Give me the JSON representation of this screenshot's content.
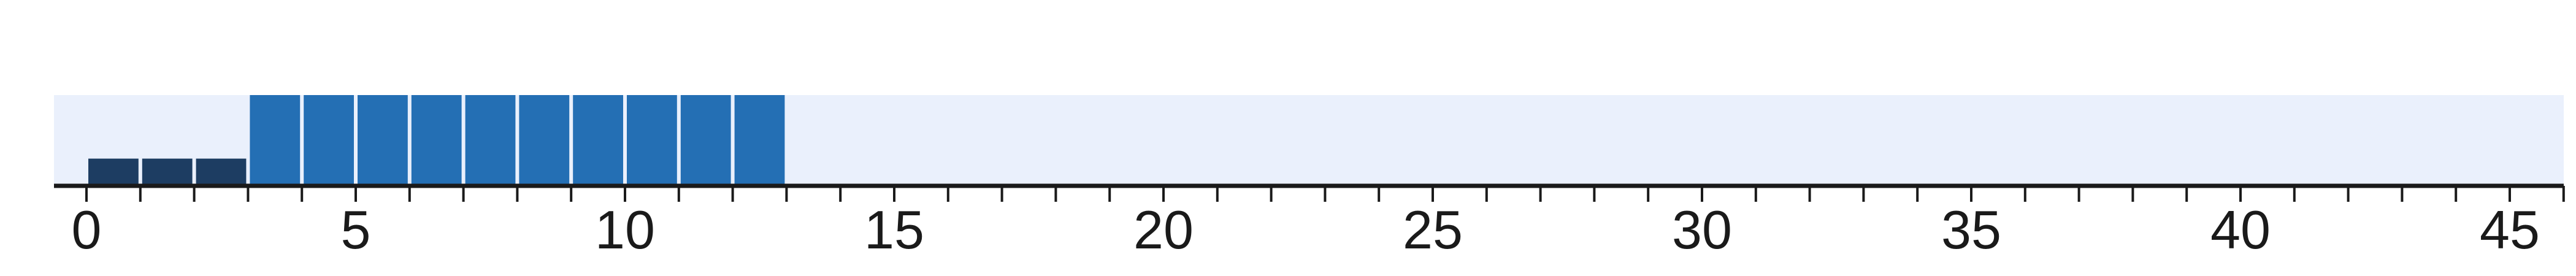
{
  "chart_data": {
    "type": "bar",
    "title": "",
    "xlabel": "",
    "ylabel": "",
    "xlim": [
      -0.6,
      46.2
    ],
    "ylim": [
      0,
      1
    ],
    "grid": false,
    "legend": "none",
    "background_band_color": "#eaf0fc",
    "axis_color": "#1a1a1a",
    "tick_values": [
      0,
      1,
      2,
      3,
      4,
      5,
      6,
      7,
      8,
      9,
      10,
      11,
      12,
      13,
      14,
      15,
      16,
      17,
      18,
      19,
      20,
      21,
      22,
      23,
      24,
      25,
      26,
      27,
      28,
      29,
      30,
      31,
      32,
      33,
      34,
      35,
      36,
      37,
      38,
      39,
      40,
      41,
      42,
      43,
      44,
      45,
      46
    ],
    "tick_labels": [
      {
        "value": 0,
        "label": "0"
      },
      {
        "value": 5,
        "label": "5"
      },
      {
        "value": 10,
        "label": "10"
      },
      {
        "value": 15,
        "label": "15"
      },
      {
        "value": 20,
        "label": "20"
      },
      {
        "value": 25,
        "label": "25"
      },
      {
        "value": 30,
        "label": "30"
      },
      {
        "value": 35,
        "label": "35"
      },
      {
        "value": 40,
        "label": "40"
      },
      {
        "value": 45,
        "label": "45"
      }
    ],
    "bars": [
      {
        "x_start": 0,
        "x_end": 1,
        "value": 0.3,
        "color": "#1d3d62"
      },
      {
        "x_start": 1,
        "x_end": 2,
        "value": 0.3,
        "color": "#1d3d62"
      },
      {
        "x_start": 2,
        "x_end": 3,
        "value": 0.3,
        "color": "#1d3d62"
      },
      {
        "x_start": 3,
        "x_end": 4,
        "value": 1.0,
        "color": "#246fb4"
      },
      {
        "x_start": 4,
        "x_end": 5,
        "value": 1.0,
        "color": "#246fb4"
      },
      {
        "x_start": 5,
        "x_end": 6,
        "value": 1.0,
        "color": "#246fb4"
      },
      {
        "x_start": 6,
        "x_end": 7,
        "value": 1.0,
        "color": "#246fb4"
      },
      {
        "x_start": 7,
        "x_end": 8,
        "value": 1.0,
        "color": "#246fb4"
      },
      {
        "x_start": 8,
        "x_end": 9,
        "value": 1.0,
        "color": "#246fb4"
      },
      {
        "x_start": 9,
        "x_end": 10,
        "value": 1.0,
        "color": "#246fb4"
      },
      {
        "x_start": 10,
        "x_end": 11,
        "value": 1.0,
        "color": "#246fb4"
      },
      {
        "x_start": 11,
        "x_end": 12,
        "value": 1.0,
        "color": "#246fb4"
      },
      {
        "x_start": 12,
        "x_end": 13,
        "value": 1.0,
        "color": "#246fb4"
      }
    ]
  }
}
